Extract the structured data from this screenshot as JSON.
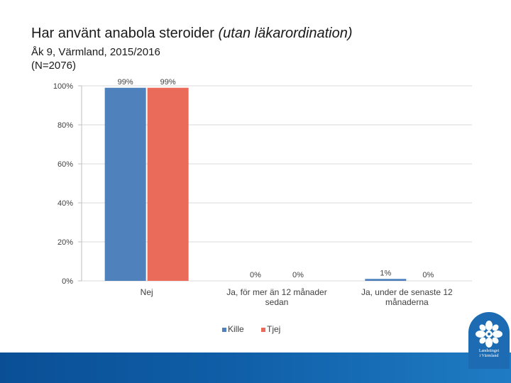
{
  "title": {
    "main": "Har använt anabola steroider",
    "italic": "(utan läkarordination)",
    "subtitle": "Åk 9, Värmland, 2015/2016",
    "subtitle2": "(N=2076)"
  },
  "chart_data": {
    "type": "bar",
    "categories": [
      "Nej",
      "Ja, för mer än 12 månader sedan",
      "Ja, under de senaste 12 månaderna"
    ],
    "category_lines": [
      [
        "Nej"
      ],
      [
        "Ja, för mer än 12 månader",
        "sedan"
      ],
      [
        "Ja, under de senaste 12",
        "månaderna"
      ]
    ],
    "series": [
      {
        "name": "Kille",
        "values": [
          99,
          0,
          1
        ],
        "labels": [
          "99%",
          "0%",
          "1%"
        ],
        "color": "#4f81bd"
      },
      {
        "name": "Tjej",
        "values": [
          99,
          0,
          0
        ],
        "labels": [
          "99%",
          "0%",
          "0%"
        ],
        "color": "#eb6b5a"
      }
    ],
    "yticks": [
      "100%",
      "80%",
      "60%",
      "40%",
      "20%",
      "0%"
    ],
    "ylim": [
      0,
      100
    ],
    "grid": true,
    "legend": "bottom"
  },
  "logo": {
    "name": "landstinget-varmland-logo",
    "line1": "Landstinget",
    "line2": "i Värmland"
  },
  "colors": {
    "footer": "#0f5ea7",
    "logo": "#1d6cb3",
    "grid": "#d9d9d9"
  }
}
